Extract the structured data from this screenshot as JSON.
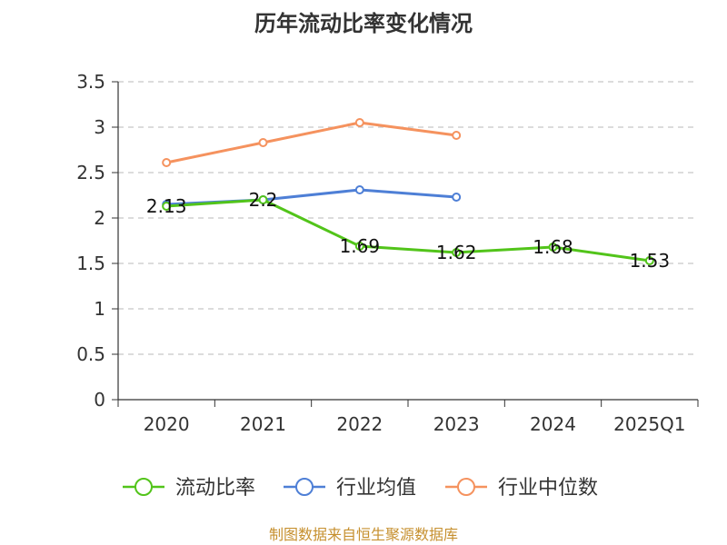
{
  "chart_data": {
    "type": "line",
    "title": "历年流动比率变化情况",
    "categories": [
      "2020",
      "2021",
      "2022",
      "2023",
      "2024",
      "2025Q1"
    ],
    "y_ticks": [
      "0",
      "0.5",
      "1",
      "1.5",
      "2",
      "2.5",
      "3",
      "3.5"
    ],
    "ylim": [
      0,
      3.5
    ],
    "grid": true,
    "legend_position": "bottom",
    "series": [
      {
        "name": "流动比率",
        "color": "#52c41a",
        "values": [
          2.13,
          2.2,
          1.69,
          1.62,
          1.68,
          1.53
        ],
        "labels": [
          "2.13",
          "2.2",
          "1.69",
          "1.62",
          "1.68",
          "1.53"
        ]
      },
      {
        "name": "行业均值",
        "color": "#4e7fd6",
        "values": [
          2.15,
          2.2,
          2.31,
          2.23,
          null,
          null
        ]
      },
      {
        "name": "行业中位数",
        "color": "#f5925e",
        "values": [
          2.61,
          2.83,
          3.05,
          2.91,
          null,
          null
        ]
      }
    ]
  },
  "source": "制图数据来自恒生聚源数据库"
}
